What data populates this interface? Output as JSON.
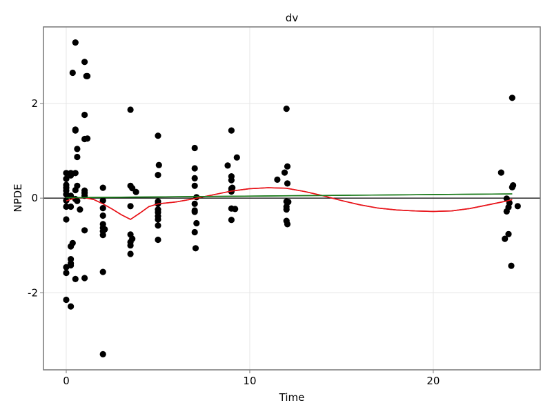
{
  "chart_data": {
    "type": "scatter",
    "title": "dv",
    "xlabel": "Time",
    "ylabel": "NPDE",
    "xlim": [
      -1.24,
      25.83
    ],
    "ylim": [
      -3.63,
      3.62
    ],
    "x_ticks": [
      0,
      10,
      20
    ],
    "x_tick_labels": [
      "0",
      "10",
      "20"
    ],
    "y_ticks": [
      -2,
      0,
      2
    ],
    "y_tick_labels": [
      "-2",
      "0",
      "2"
    ],
    "grid": true,
    "legend": null,
    "reference_line": {
      "y": 0,
      "color": "#000000"
    },
    "series": [
      {
        "name": "observations",
        "type": "scatter",
        "color": "#000000",
        "points": [
          [
            0.0,
            0.53
          ],
          [
            0.0,
            0.41
          ],
          [
            0.0,
            0.28
          ],
          [
            0.0,
            0.22
          ],
          [
            0.0,
            0.16
          ],
          [
            0.0,
            0.08
          ],
          [
            0.0,
            -0.05
          ],
          [
            0.0,
            -0.18
          ],
          [
            0.0,
            -0.45
          ],
          [
            0.0,
            -1.46
          ],
          [
            0.0,
            -1.58
          ],
          [
            0.0,
            -2.15
          ],
          [
            0.25,
            0.53
          ],
          [
            0.25,
            0.48
          ],
          [
            0.25,
            0.05
          ],
          [
            0.25,
            -0.18
          ],
          [
            0.25,
            -1.02
          ],
          [
            0.25,
            -1.29
          ],
          [
            0.25,
            -1.38
          ],
          [
            0.25,
            -1.42
          ],
          [
            0.25,
            -2.29
          ],
          [
            0.35,
            2.65
          ],
          [
            0.35,
            -0.95
          ],
          [
            0.5,
            3.29
          ],
          [
            0.5,
            1.43
          ],
          [
            0.5,
            1.45
          ],
          [
            0.5,
            0.53
          ],
          [
            0.5,
            0.17
          ],
          [
            0.5,
            -0.02
          ],
          [
            0.5,
            -1.71
          ],
          [
            0.6,
            1.04
          ],
          [
            0.6,
            0.87
          ],
          [
            0.6,
            0.26
          ],
          [
            0.6,
            -0.06
          ],
          [
            0.75,
            -0.24
          ],
          [
            1.0,
            2.88
          ],
          [
            1.0,
            1.76
          ],
          [
            1.0,
            1.25
          ],
          [
            1.0,
            0.16
          ],
          [
            1.0,
            0.11
          ],
          [
            1.0,
            0.05
          ],
          [
            1.0,
            -0.68
          ],
          [
            1.0,
            -1.69
          ],
          [
            1.1,
            2.58
          ],
          [
            1.15,
            2.58
          ],
          [
            1.15,
            1.26
          ],
          [
            2.0,
            0.22
          ],
          [
            2.0,
            -0.05
          ],
          [
            2.0,
            -0.21
          ],
          [
            2.0,
            -0.37
          ],
          [
            2.0,
            -0.55
          ],
          [
            2.0,
            -0.63
          ],
          [
            2.0,
            -0.7
          ],
          [
            2.0,
            -0.78
          ],
          [
            2.0,
            -1.56
          ],
          [
            2.0,
            -3.3
          ],
          [
            2.1,
            -0.66
          ],
          [
            3.5,
            1.87
          ],
          [
            3.5,
            0.26
          ],
          [
            3.5,
            -0.17
          ],
          [
            3.5,
            -0.77
          ],
          [
            3.5,
            -0.93
          ],
          [
            3.5,
            -1.0
          ],
          [
            3.5,
            -1.18
          ],
          [
            3.6,
            0.21
          ],
          [
            3.6,
            -0.86
          ],
          [
            3.8,
            0.13
          ],
          [
            5.0,
            1.32
          ],
          [
            5.0,
            0.49
          ],
          [
            5.0,
            -0.07
          ],
          [
            5.0,
            -0.12
          ],
          [
            5.0,
            -0.24
          ],
          [
            5.0,
            -0.3
          ],
          [
            5.0,
            -0.38
          ],
          [
            5.0,
            -0.45
          ],
          [
            5.0,
            -0.58
          ],
          [
            5.0,
            -0.88
          ],
          [
            5.05,
            0.7
          ],
          [
            7.0,
            1.06
          ],
          [
            7.0,
            0.63
          ],
          [
            7.0,
            0.42
          ],
          [
            7.0,
            0.26
          ],
          [
            7.0,
            -0.12
          ],
          [
            7.0,
            -0.26
          ],
          [
            7.0,
            -0.29
          ],
          [
            7.0,
            -0.72
          ],
          [
            7.05,
            -1.06
          ],
          [
            7.1,
            0.02
          ],
          [
            7.1,
            -0.53
          ],
          [
            8.8,
            0.69
          ],
          [
            9.0,
            1.43
          ],
          [
            9.0,
            0.46
          ],
          [
            9.0,
            0.38
          ],
          [
            9.0,
            0.2
          ],
          [
            9.0,
            0.14
          ],
          [
            9.0,
            -0.22
          ],
          [
            9.0,
            -0.46
          ],
          [
            9.05,
            0.22
          ],
          [
            9.2,
            -0.23
          ],
          [
            9.3,
            0.86
          ],
          [
            11.5,
            0.39
          ],
          [
            11.9,
            0.54
          ],
          [
            12.0,
            1.89
          ],
          [
            12.0,
            -0.07
          ],
          [
            12.0,
            -0.18
          ],
          [
            12.0,
            -0.24
          ],
          [
            12.0,
            -0.48
          ],
          [
            12.05,
            0.67
          ],
          [
            12.05,
            0.31
          ],
          [
            12.05,
            -0.55
          ],
          [
            12.1,
            -0.08
          ],
          [
            23.7,
            0.54
          ],
          [
            23.9,
            -0.86
          ],
          [
            24.0,
            -0.01
          ],
          [
            24.0,
            -0.28
          ],
          [
            24.1,
            -0.76
          ],
          [
            24.1,
            -0.19
          ],
          [
            24.15,
            -0.1
          ],
          [
            24.25,
            -1.43
          ],
          [
            24.3,
            2.12
          ],
          [
            24.3,
            0.23
          ],
          [
            24.35,
            0.27
          ],
          [
            24.6,
            -0.17
          ]
        ]
      },
      {
        "name": "loess-smooth",
        "type": "line",
        "color": "#e8141a",
        "points": [
          [
            0.0,
            -0.06
          ],
          [
            0.5,
            0.01
          ],
          [
            1.0,
            0.01
          ],
          [
            1.5,
            -0.03
          ],
          [
            2.0,
            -0.12
          ],
          [
            2.5,
            -0.23
          ],
          [
            3.0,
            -0.35
          ],
          [
            3.5,
            -0.45
          ],
          [
            4.0,
            -0.32
          ],
          [
            4.5,
            -0.18
          ],
          [
            5.0,
            -0.12
          ],
          [
            6.0,
            -0.08
          ],
          [
            7.0,
            -0.01
          ],
          [
            8.0,
            0.07
          ],
          [
            9.0,
            0.15
          ],
          [
            10.0,
            0.2
          ],
          [
            11.0,
            0.22
          ],
          [
            12.0,
            0.21
          ],
          [
            13.0,
            0.14
          ],
          [
            14.0,
            0.05
          ],
          [
            15.0,
            -0.05
          ],
          [
            16.0,
            -0.14
          ],
          [
            17.0,
            -0.21
          ],
          [
            18.0,
            -0.25
          ],
          [
            19.0,
            -0.27
          ],
          [
            20.0,
            -0.28
          ],
          [
            21.0,
            -0.27
          ],
          [
            22.0,
            -0.22
          ],
          [
            23.0,
            -0.14
          ],
          [
            24.0,
            -0.06
          ],
          [
            24.3,
            -0.03
          ]
        ]
      },
      {
        "name": "linear-fit",
        "type": "line",
        "color": "#1a7a1a",
        "points": [
          [
            0.0,
            0.01
          ],
          [
            24.3,
            0.09
          ]
        ]
      }
    ]
  }
}
